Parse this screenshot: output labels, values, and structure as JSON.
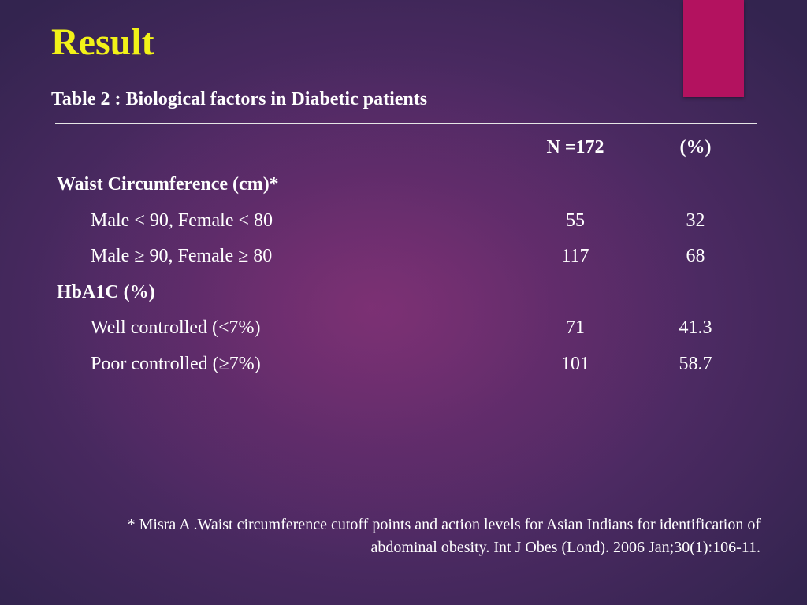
{
  "slide": {
    "title": "Result",
    "caption": "Table 2 : Biological factors in Diabetic patients",
    "accent_color": "#b3125f",
    "title_color": "#f2f218"
  },
  "table": {
    "headers": {
      "label": "",
      "n": "N =172",
      "pct": "(%)"
    },
    "rows": [
      {
        "kind": "group",
        "label": "Waist Circumference (cm)*",
        "n": "",
        "pct": ""
      },
      {
        "kind": "item",
        "label": "Male < 90, Female < 80",
        "n": "55",
        "pct": "32"
      },
      {
        "kind": "item",
        "label": "Male ≥ 90, Female ≥ 80",
        "n": "117",
        "pct": "68"
      },
      {
        "kind": "group",
        "label": "HbA1C (%)",
        "n": "",
        "pct": ""
      },
      {
        "kind": "item",
        "label": "Well controlled (<7%)",
        "n": "71",
        "pct": "41.3"
      },
      {
        "kind": "item",
        "label": "Poor controlled (≥7%)",
        "n": "101",
        "pct": "58.7"
      }
    ]
  },
  "footnote": {
    "line1": "* Misra A .Waist circumference cutoff points and action levels for Asian Indians for identification of",
    "line2": "abdominal obesity. Int J Obes (Lond). 2006 Jan;30(1):106-11."
  }
}
